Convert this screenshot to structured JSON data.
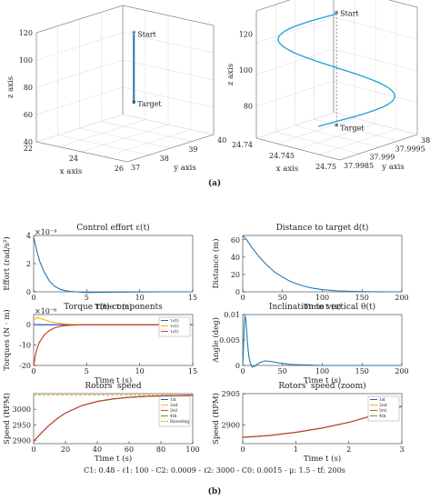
{
  "captions": {
    "a": "(a)",
    "b": "(b)"
  },
  "params_line": "C1: 0.48 - ℓ1: 100 - C2: 0.0009 - ℓ2: 3000 - C0: 0.0015 - μ: 1.5 - tf: 200s",
  "chart_data": [
    {
      "id": "traj3d_left",
      "type": "line3d",
      "xlabel": "x axis",
      "ylabel": "y axis",
      "zlabel": "z axis",
      "xticks": [
        "22",
        "24",
        "26"
      ],
      "yticks": [
        "37",
        "38",
        "39",
        "40"
      ],
      "zticks": [
        "40",
        "60",
        "80",
        "100",
        "120"
      ],
      "zlim": [
        40,
        120
      ],
      "points": {
        "start": {
          "label": "Start",
          "z": 116
        },
        "target": {
          "label": "Target",
          "z": 65
        }
      }
    },
    {
      "id": "traj3d_right",
      "type": "line3d",
      "xlabel": "x axis",
      "ylabel": "y axis",
      "zlabel": "z axis",
      "xticks": [
        "24.74",
        "24.745",
        "24.75"
      ],
      "yticks": [
        "37.9985",
        "37.999",
        "37.9995",
        "38"
      ],
      "zticks": [
        "80",
        "100",
        "120"
      ],
      "zlim": [
        62,
        133
      ],
      "points": {
        "start": {
          "label": "Start",
          "z": 129
        },
        "target": {
          "label": "Target",
          "z": 66
        }
      }
    },
    {
      "id": "control_effort",
      "type": "line",
      "title": "Control effort ε(t)",
      "xlabel": "Time t (s)",
      "ylabel": "Effort (rad/s²)",
      "exponent": "×10⁻⁴",
      "xlim": [
        0,
        15
      ],
      "ylim": [
        0,
        4
      ],
      "xticks": [
        "0",
        "5",
        "10",
        "15"
      ],
      "yticks": [
        "0",
        "2",
        "4"
      ],
      "series": [
        {
          "color": "#1f77b4",
          "x": [
            0,
            0.3,
            0.6,
            1,
            1.5,
            2,
            2.5,
            3,
            3.5,
            4,
            5,
            6,
            8,
            10,
            12,
            15
          ],
          "y": [
            3.9,
            2.9,
            2.1,
            1.4,
            0.75,
            0.38,
            0.18,
            0.08,
            0.03,
            0.0,
            -0.05,
            -0.04,
            -0.02,
            -0.01,
            0.0,
            0.0
          ]
        }
      ]
    },
    {
      "id": "distance",
      "type": "line",
      "title": "Distance to target d(t)",
      "xlabel": "Time t (s)",
      "ylabel": "Distance (m)",
      "xlim": [
        0,
        200
      ],
      "ylim": [
        0,
        65
      ],
      "xticks": [
        "0",
        "50",
        "100",
        "150",
        "200"
      ],
      "yticks": [
        "0",
        "20",
        "40",
        "60"
      ],
      "series": [
        {
          "color": "#1f77b4",
          "x": [
            0,
            5,
            10,
            15,
            20,
            30,
            40,
            50,
            60,
            70,
            80,
            90,
            100,
            120,
            140,
            160,
            180,
            200
          ],
          "y": [
            65,
            60,
            53,
            47,
            41,
            31,
            23,
            17,
            12,
            8.5,
            5.8,
            3.9,
            2.5,
            1.0,
            0.4,
            0.15,
            0.05,
            0.0
          ]
        }
      ]
    },
    {
      "id": "torque",
      "type": "line",
      "title": "Torque τ(t) components",
      "xlabel": "Time t (s)",
      "ylabel": "Torques (N · m)",
      "exponent": "×10⁻⁶",
      "xlim": [
        0,
        15
      ],
      "ylim": [
        -20,
        5
      ],
      "xticks": [
        "0",
        "5",
        "10",
        "15"
      ],
      "yticks": [
        "-20",
        "-10",
        "0"
      ],
      "legend": [
        "τ₁(t)",
        "τ₂(t)",
        "τ₃(t)"
      ],
      "series": [
        {
          "name": "τ₁(t)",
          "color": "#1f3fbf",
          "x": [
            0,
            0.5,
            1,
            2,
            3,
            5,
            10,
            15
          ],
          "y": [
            0,
            0,
            0,
            0,
            0,
            0,
            0,
            0
          ]
        },
        {
          "name": "τ₂(t)",
          "color": "#e6b800",
          "x": [
            0,
            0.3,
            0.8,
            1.5,
            2,
            3,
            4,
            6,
            10,
            15
          ],
          "y": [
            2.5,
            3.5,
            2.8,
            1.6,
            1.0,
            0.4,
            0.1,
            0.0,
            0.0,
            0.0
          ]
        },
        {
          "name": "τ₃(t)",
          "color": "#c0392b",
          "x": [
            0,
            0.2,
            0.5,
            1,
            1.5,
            2,
            2.5,
            3,
            4,
            5,
            8,
            15
          ],
          "y": [
            -20,
            -14,
            -9,
            -5,
            -2.8,
            -1.5,
            -0.8,
            -0.4,
            -0.1,
            0.0,
            0.0,
            0.0
          ]
        }
      ]
    },
    {
      "id": "inclination",
      "type": "line",
      "title": "Inclination to vertical θ(t)",
      "xlabel": "Time t (s)",
      "ylabel": "Angle (deg)",
      "xlim": [
        0,
        200
      ],
      "ylim": [
        0,
        0.01
      ],
      "xticks": [
        "0",
        "50",
        "100",
        "150",
        "200"
      ],
      "yticks": [
        "0",
        "0.005",
        "0.01"
      ],
      "series": [
        {
          "color": "#1f77b4",
          "x": [
            0,
            1,
            2,
            3,
            4,
            5,
            6,
            8,
            10,
            12,
            14,
            18,
            22,
            28,
            35,
            45,
            60,
            80,
            100,
            150,
            200
          ],
          "y": [
            0,
            0.004,
            0.0085,
            0.0098,
            0.0088,
            0.0065,
            0.0042,
            0.0015,
            0.0002,
            -0.0003,
            -0.0002,
            0.0002,
            0.0006,
            0.0009,
            0.0008,
            0.0005,
            0.0002,
            0.0001,
            0.0,
            0.0,
            0.0
          ]
        }
      ]
    },
    {
      "id": "rotors_speed",
      "type": "line",
      "title": "Rotors' speed",
      "xlabel": "Time t (s)",
      "ylabel": "Speed (RPM)",
      "xlim": [
        0,
        100
      ],
      "ylim": [
        2890,
        3050
      ],
      "xticks": [
        "0",
        "20",
        "40",
        "60",
        "80",
        "100"
      ],
      "yticks": [
        "2900",
        "2950",
        "3000"
      ],
      "legend": [
        "1st",
        "2nd",
        "3rd",
        "4th",
        "Hovering"
      ],
      "hovering": 3045,
      "series": [
        {
          "name": "4th",
          "color": "#2ca02c",
          "x": [
            0,
            5,
            10,
            15,
            20,
            30,
            40,
            50,
            60,
            70,
            80,
            90,
            100
          ],
          "y": [
            2898,
            2925,
            2950,
            2971,
            2988,
            3011,
            3025,
            3033,
            3038,
            3041,
            3043,
            3044,
            3045
          ]
        },
        {
          "name": "3rd",
          "color": "#c0392b",
          "x": [
            0,
            5,
            10,
            15,
            20,
            30,
            40,
            50,
            60,
            70,
            80,
            90,
            100
          ],
          "y": [
            2898,
            2925,
            2950,
            2971,
            2988,
            3011,
            3025,
            3033,
            3038,
            3041,
            3043,
            3044,
            3045
          ]
        }
      ]
    },
    {
      "id": "rotors_zoom",
      "type": "line",
      "title": "Rotors' speed (zoom)",
      "xlabel": "Time t (s)",
      "ylabel": "Speed (RPM)",
      "xlim": [
        0,
        3
      ],
      "ylim": [
        2897,
        2905
      ],
      "xticks": [
        "0",
        "1",
        "2",
        "3"
      ],
      "yticks": [
        "2900",
        "2905"
      ],
      "legend": [
        "1st",
        "2nd",
        "3rd",
        "4th"
      ],
      "series": [
        {
          "name": "4th",
          "color": "#2ca02c",
          "x": [
            0,
            0.5,
            1,
            1.5,
            2,
            2.5,
            3
          ],
          "y": [
            2898.0,
            2898.3,
            2898.8,
            2899.5,
            2900.4,
            2901.6,
            2903.0
          ]
        },
        {
          "name": "3rd",
          "color": "#c0392b",
          "x": [
            0,
            0.5,
            1,
            1.5,
            2,
            2.5,
            3
          ],
          "y": [
            2898.0,
            2898.3,
            2898.8,
            2899.5,
            2900.4,
            2901.6,
            2903.0
          ]
        }
      ]
    }
  ]
}
